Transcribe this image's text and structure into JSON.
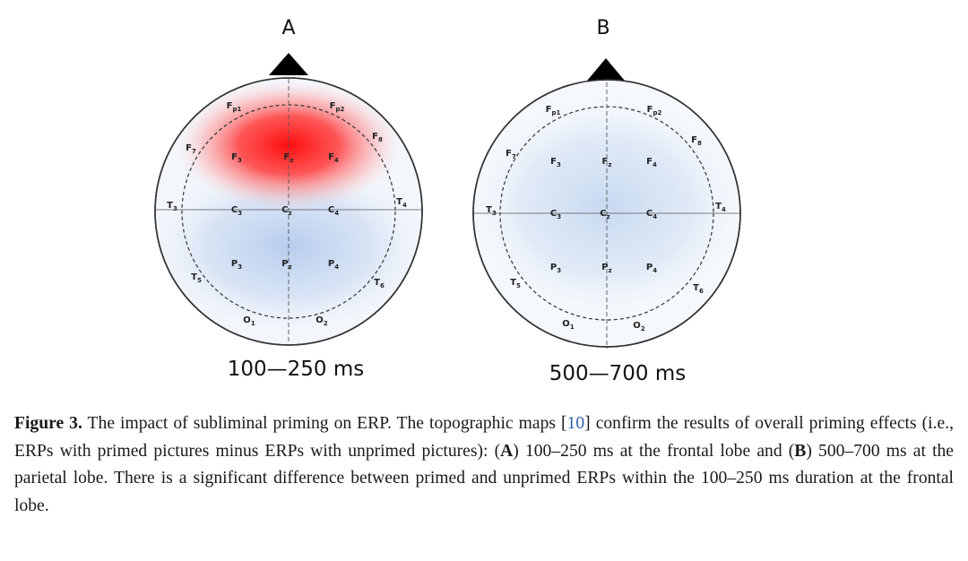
{
  "figure": {
    "panels": [
      {
        "letter": "A",
        "time_window": "100—250 ms",
        "electrodes": [
          {
            "id": "Fp1",
            "base": "F",
            "sub": "p1"
          },
          {
            "id": "Fp2",
            "base": "F",
            "sub": "p2"
          },
          {
            "id": "F7",
            "base": "F",
            "sub": "7"
          },
          {
            "id": "F8",
            "base": "F",
            "sub": "8"
          },
          {
            "id": "F3",
            "base": "F",
            "sub": "3"
          },
          {
            "id": "Fz",
            "base": "F",
            "sub": "z"
          },
          {
            "id": "F4",
            "base": "F",
            "sub": "4"
          },
          {
            "id": "T3",
            "base": "T",
            "sub": "3"
          },
          {
            "id": "C3",
            "base": "C",
            "sub": "3"
          },
          {
            "id": "Cz",
            "base": "C",
            "sub": "z"
          },
          {
            "id": "C4",
            "base": "C",
            "sub": "4"
          },
          {
            "id": "T4",
            "base": "T",
            "sub": "4"
          },
          {
            "id": "P3",
            "base": "P",
            "sub": "3"
          },
          {
            "id": "Pz",
            "base": "P",
            "sub": "z"
          },
          {
            "id": "P4",
            "base": "P",
            "sub": "4"
          },
          {
            "id": "T5",
            "base": "T",
            "sub": "5"
          },
          {
            "id": "T6",
            "base": "T",
            "sub": "6"
          },
          {
            "id": "O1",
            "base": "O",
            "sub": "1"
          },
          {
            "id": "O2",
            "base": "O",
            "sub": "2"
          }
        ],
        "colors": {
          "positive": "#ff2020",
          "negative": "#b8cfee",
          "outline": "#333333"
        }
      },
      {
        "letter": "B",
        "time_window": "500—700 ms",
        "electrodes": [
          {
            "id": "Fp1",
            "base": "F",
            "sub": "p1"
          },
          {
            "id": "Fp2",
            "base": "F",
            "sub": "p2"
          },
          {
            "id": "F7",
            "base": "F",
            "sub": "7"
          },
          {
            "id": "F8",
            "base": "F",
            "sub": "8"
          },
          {
            "id": "F3",
            "base": "F",
            "sub": "3"
          },
          {
            "id": "Fz",
            "base": "F",
            "sub": "z"
          },
          {
            "id": "F4",
            "base": "F",
            "sub": "4"
          },
          {
            "id": "T3",
            "base": "T",
            "sub": "3"
          },
          {
            "id": "C3",
            "base": "C",
            "sub": "3"
          },
          {
            "id": "Cz",
            "base": "C",
            "sub": "z"
          },
          {
            "id": "C4",
            "base": "C",
            "sub": "4"
          },
          {
            "id": "T4",
            "base": "T",
            "sub": "4"
          },
          {
            "id": "P3",
            "base": "P",
            "sub": "3"
          },
          {
            "id": "Pz",
            "base": "P",
            "sub": "z"
          },
          {
            "id": "P4",
            "base": "P",
            "sub": "4"
          },
          {
            "id": "T5",
            "base": "T",
            "sub": "5"
          },
          {
            "id": "T6",
            "base": "T",
            "sub": "6"
          },
          {
            "id": "O1",
            "base": "O",
            "sub": "1"
          },
          {
            "id": "O2",
            "base": "O",
            "sub": "2"
          }
        ],
        "colors": {
          "negative": "#c5d7ef",
          "outline": "#333333"
        }
      }
    ]
  },
  "caption": {
    "label": "Figure 3.",
    "text_1": " The impact of subliminal priming on ERP. The topographic maps [",
    "ref": "10",
    "text_2": "] confirm the results of overall priming effects (i.e., ERPs with primed pictures minus ERPs with unprimed pictures): (",
    "a_label": "A",
    "text_3": ") 100–250 ms at the frontal lobe and (",
    "b_label": "B",
    "text_4": ") 500–700 ms at the parietal lobe.  There is a significant difference between primed and unprimed ERPs within the 100–250 ms duration at the frontal lobe."
  }
}
